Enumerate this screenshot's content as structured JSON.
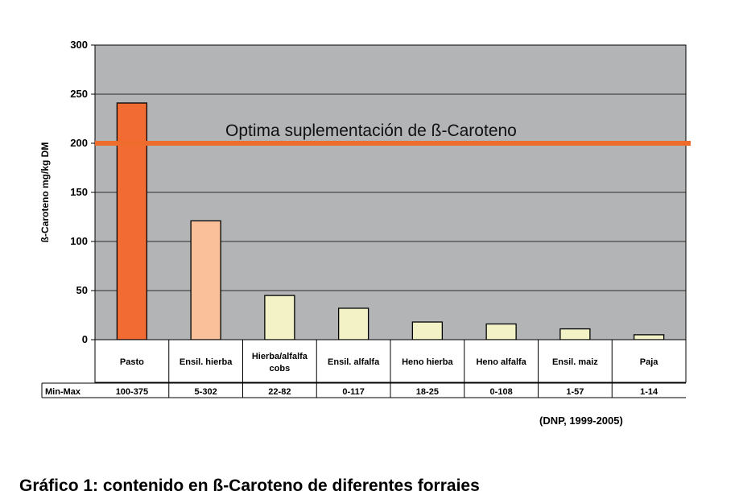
{
  "chart_data": {
    "type": "bar",
    "ylabel": "ß-Caroteno mg/kg DM",
    "ylim": [
      0,
      300
    ],
    "yticks": [
      0,
      50,
      100,
      150,
      200,
      250,
      300
    ],
    "categories": [
      {
        "lines": [
          "Pasto"
        ]
      },
      {
        "lines": [
          "Ensil. hierba"
        ]
      },
      {
        "lines": [
          "Hierba/alfalfa",
          "cobs"
        ]
      },
      {
        "lines": [
          "Ensil. alfalfa"
        ]
      },
      {
        "lines": [
          "Heno hierba"
        ]
      },
      {
        "lines": [
          "Heno alfalfa"
        ]
      },
      {
        "lines": [
          "Ensil. maiz"
        ]
      },
      {
        "lines": [
          "Paja"
        ]
      }
    ],
    "values": [
      241,
      121,
      45,
      32,
      18,
      16,
      11,
      5
    ],
    "bar_colors": [
      "#f26b33",
      "#f9c09a",
      "#f3f2c6",
      "#f3f2c6",
      "#f3f2c6",
      "#f3f2c6",
      "#f3f2c6",
      "#f3f2c6"
    ],
    "reference_line": {
      "value": 200,
      "label": "Optima suplementación de ß-Caroteno",
      "color": "#ee6c2c"
    },
    "range_row_label": "Min-Max",
    "ranges": [
      "100-375",
      "5-302",
      "22-82",
      "0-117",
      "18-25",
      "0-108",
      "1-57",
      "1-14"
    ],
    "plot_background": "#b2b4b6",
    "grid": true,
    "source": "(DNP, 1999-2005)",
    "caption": "Gráfico 1: contenido en ß-Caroteno de diferentes forrajes"
  }
}
